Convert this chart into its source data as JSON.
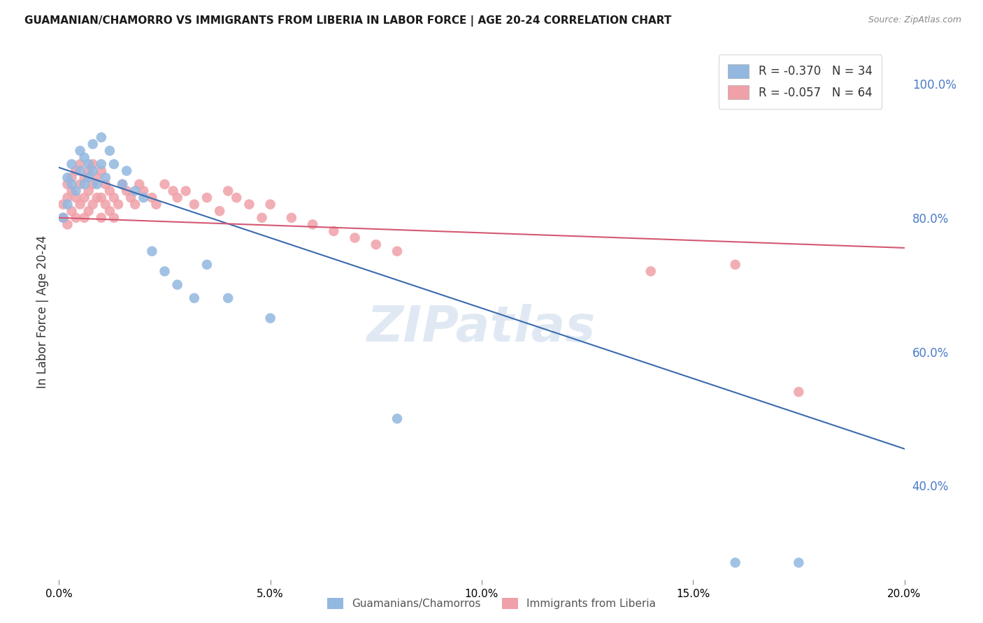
{
  "title": "GUAMANIAN/CHAMORRO VS IMMIGRANTS FROM LIBERIA IN LABOR FORCE | AGE 20-24 CORRELATION CHART",
  "source": "Source: ZipAtlas.com",
  "ylabel": "In Labor Force | Age 20-24",
  "legend_blue_label": "Guamanians/Chamorros",
  "legend_pink_label": "Immigrants from Liberia",
  "R_blue": -0.37,
  "N_blue": 34,
  "R_pink": -0.057,
  "N_pink": 64,
  "xlim": [
    0.0,
    0.2
  ],
  "ylim": [
    0.26,
    1.06
  ],
  "xticks": [
    0.0,
    0.05,
    0.1,
    0.15,
    0.2
  ],
  "yticks_right": [
    0.4,
    0.6,
    0.8,
    1.0
  ],
  "background_color": "#ffffff",
  "blue_color": "#92b8e0",
  "pink_color": "#f0a0a8",
  "blue_line_color": "#3a6baf",
  "pink_line_color": "#d45872",
  "grid_color": "#cccccc",
  "watermark": "ZIPatlas",
  "blue_x": [
    0.001,
    0.002,
    0.002,
    0.003,
    0.003,
    0.004,
    0.005,
    0.005,
    0.006,
    0.006,
    0.007,
    0.007,
    0.008,
    0.008,
    0.009,
    0.01,
    0.01,
    0.011,
    0.012,
    0.013,
    0.015,
    0.016,
    0.018,
    0.02,
    0.022,
    0.025,
    0.028,
    0.032,
    0.035,
    0.04,
    0.05,
    0.08,
    0.16,
    0.175
  ],
  "blue_y": [
    0.8,
    0.82,
    0.86,
    0.85,
    0.88,
    0.84,
    0.9,
    0.87,
    0.85,
    0.89,
    0.88,
    0.86,
    0.87,
    0.91,
    0.85,
    0.92,
    0.88,
    0.86,
    0.9,
    0.88,
    0.85,
    0.87,
    0.84,
    0.83,
    0.75,
    0.72,
    0.7,
    0.68,
    0.73,
    0.68,
    0.65,
    0.5,
    0.285,
    0.285
  ],
  "pink_x": [
    0.001,
    0.001,
    0.002,
    0.002,
    0.002,
    0.003,
    0.003,
    0.003,
    0.004,
    0.004,
    0.004,
    0.005,
    0.005,
    0.005,
    0.006,
    0.006,
    0.006,
    0.007,
    0.007,
    0.007,
    0.008,
    0.008,
    0.008,
    0.009,
    0.009,
    0.01,
    0.01,
    0.01,
    0.011,
    0.011,
    0.012,
    0.012,
    0.013,
    0.013,
    0.014,
    0.015,
    0.016,
    0.017,
    0.018,
    0.019,
    0.02,
    0.022,
    0.023,
    0.025,
    0.027,
    0.028,
    0.03,
    0.032,
    0.035,
    0.038,
    0.04,
    0.042,
    0.045,
    0.048,
    0.05,
    0.055,
    0.06,
    0.065,
    0.07,
    0.075,
    0.08,
    0.14,
    0.16,
    0.175
  ],
  "pink_y": [
    0.8,
    0.82,
    0.79,
    0.83,
    0.85,
    0.81,
    0.84,
    0.86,
    0.8,
    0.83,
    0.87,
    0.82,
    0.85,
    0.88,
    0.8,
    0.83,
    0.86,
    0.81,
    0.84,
    0.87,
    0.82,
    0.85,
    0.88,
    0.83,
    0.86,
    0.8,
    0.83,
    0.87,
    0.82,
    0.85,
    0.81,
    0.84,
    0.8,
    0.83,
    0.82,
    0.85,
    0.84,
    0.83,
    0.82,
    0.85,
    0.84,
    0.83,
    0.82,
    0.85,
    0.84,
    0.83,
    0.84,
    0.82,
    0.83,
    0.81,
    0.84,
    0.83,
    0.82,
    0.8,
    0.82,
    0.8,
    0.79,
    0.78,
    0.77,
    0.76,
    0.75,
    0.72,
    0.73,
    0.54
  ],
  "blue_line_x0": 0.0,
  "blue_line_y0": 0.875,
  "blue_line_x1": 0.2,
  "blue_line_y1": 0.455,
  "pink_line_x0": 0.0,
  "pink_line_y0": 0.8,
  "pink_line_x1": 0.2,
  "pink_line_y1": 0.755
}
